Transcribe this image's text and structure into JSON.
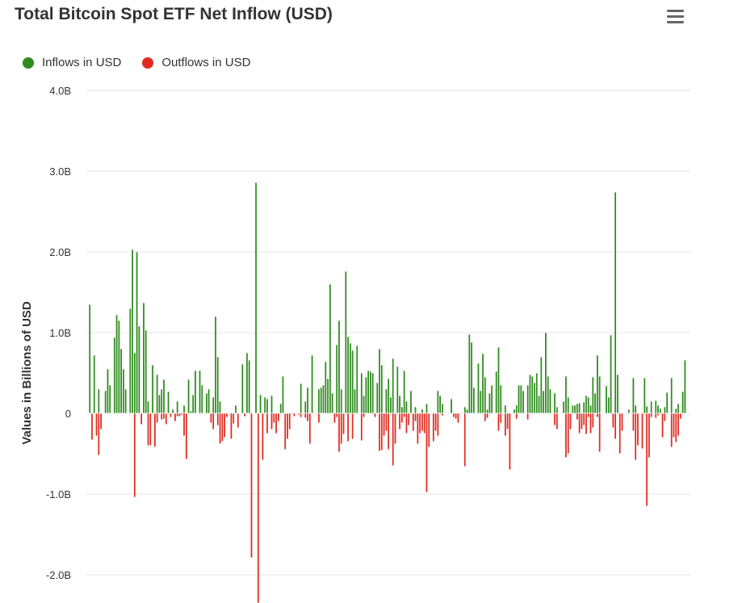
{
  "chart_data": {
    "type": "bar",
    "title": "Total Bitcoin Spot ETF Net Inflow (USD)",
    "ylabel": "Values in Billions of USD",
    "xlabel": "",
    "ylim": [
      -2.35,
      4.0
    ],
    "grid": true,
    "legend_position": "top-left",
    "yticks": [
      {
        "value": 4.0,
        "label": "4.0B"
      },
      {
        "value": 3.0,
        "label": "3.0B"
      },
      {
        "value": 2.0,
        "label": "2.0B"
      },
      {
        "value": 1.0,
        "label": "1.0B"
      },
      {
        "value": 0,
        "label": "0"
      },
      {
        "value": -1.0,
        "label": "-1.0B"
      },
      {
        "value": -2.0,
        "label": "-2.0B"
      }
    ],
    "series": [
      {
        "name": "Inflows in USD",
        "color": "#2e8b1e",
        "values": [
          1.35,
          0,
          0.72,
          0,
          0.3,
          0,
          0,
          0.28,
          0.55,
          0.35,
          0,
          0.94,
          1.22,
          1.15,
          0.8,
          0.55,
          0.3,
          0,
          1.3,
          2.03,
          0.75,
          2.0,
          1.08,
          0,
          1.37,
          1.03,
          0.15,
          0,
          0.6,
          0,
          0.48,
          0.23,
          0.3,
          0.42,
          0,
          0.27,
          0,
          0.05,
          0,
          0.15,
          0,
          0,
          0.1,
          0,
          0.42,
          0.03,
          0.23,
          0.53,
          0,
          0.53,
          0.35,
          0,
          0.25,
          0.3,
          0,
          0.2,
          1.2,
          0.7,
          0.15,
          0,
          0,
          0,
          0,
          0,
          0,
          0.1,
          0,
          0,
          0.61,
          0,
          0.75,
          0.66,
          0,
          0,
          2.86,
          0,
          0.23,
          0,
          0.2,
          0.18,
          0,
          0.22,
          0,
          0,
          0,
          0.12,
          0.46,
          0,
          0,
          0,
          0,
          0,
          0,
          0,
          0.37,
          0,
          0.15,
          0.32,
          0,
          0.72,
          0,
          0,
          0.3,
          0.32,
          0.35,
          0.64,
          0.43,
          1.6,
          0.25,
          0,
          0.85,
          1.15,
          0.3,
          0,
          1.76,
          0.95,
          0.87,
          0.78,
          0.3,
          0.84,
          0,
          0.5,
          0.22,
          0.45,
          0.53,
          0.52,
          0.5,
          0,
          0.38,
          0.8,
          0.6,
          0,
          0.3,
          0.43,
          0.2,
          0.68,
          0,
          0.58,
          0.22,
          0.08,
          0.53,
          0.15,
          0,
          0.28,
          0,
          0.08,
          0,
          0,
          0.05,
          0,
          0.12,
          0,
          0,
          0,
          0,
          0.28,
          0.22,
          0.12,
          0,
          0,
          0,
          0.18,
          0,
          0,
          0,
          0,
          0,
          0.08,
          0.05,
          0.98,
          0.88,
          0.32,
          0,
          0.62,
          0.28,
          0.74,
          0.45,
          0.05,
          0.25,
          0.35,
          0,
          0.52,
          0.82,
          0.35,
          0,
          0.1,
          0,
          0,
          0,
          0.05,
          0.1,
          0.35,
          0.35,
          0.28,
          0,
          0.35,
          0.48,
          0.46,
          0.38,
          0.5,
          0.22,
          0.7,
          0.28,
          1.0,
          0.46,
          0.3,
          0,
          0.25,
          0.08,
          0,
          0,
          0.15,
          0.46,
          0.2,
          0,
          0.1,
          0.1,
          0.12,
          0.13,
          0,
          0.14,
          0.22,
          0.2,
          0.1,
          0.45,
          0.25,
          0.72,
          0.46,
          0,
          0,
          0.34,
          0.2,
          0.97,
          0,
          2.74,
          0.48,
          0,
          0,
          0,
          0,
          0.05,
          0,
          0.44,
          0.1,
          0,
          0,
          0,
          0.44,
          0.09,
          0,
          0.15,
          0,
          0.16,
          0.1,
          0.06,
          0,
          0.08,
          0.26,
          0,
          0.44,
          0,
          0.06,
          0.12,
          0,
          0.27,
          0.66
        ],
        "min_value": 0
      },
      {
        "name": "Outflows in USD",
        "color": "#e02b20",
        "values": [
          0,
          -0.33,
          0,
          -0.28,
          -0.52,
          -0.2,
          0,
          0,
          0,
          0,
          0,
          0,
          0,
          0,
          0,
          0,
          0,
          0,
          0,
          0,
          -1.04,
          0,
          0,
          -0.14,
          0,
          0,
          -0.4,
          -0.4,
          0,
          -0.42,
          -0.12,
          0,
          -0.08,
          -0.07,
          -0.14,
          0,
          -0.05,
          0,
          -0.1,
          -0.04,
          -0.04,
          -0.02,
          -0.28,
          -0.57,
          0,
          0,
          0,
          0,
          0,
          0,
          0,
          0,
          0,
          0,
          -0.12,
          -0.2,
          0,
          -0.15,
          -0.38,
          -0.35,
          -0.3,
          -0.05,
          0,
          -0.32,
          -0.13,
          0,
          -0.18,
          0,
          0,
          -0.04,
          0,
          0,
          -1.79,
          0,
          0,
          -2.35,
          0,
          -0.58,
          0,
          -0.25,
          0,
          -0.2,
          -0.12,
          -0.25,
          -0.1,
          0,
          0,
          -0.45,
          -0.32,
          -0.2,
          0,
          -0.04,
          0,
          -0.02,
          -0.05,
          0,
          -0.06,
          -0.1,
          -0.38,
          0,
          0,
          0,
          -0.12,
          0,
          0,
          0,
          0,
          0,
          0,
          -0.12,
          -0.05,
          -0.48,
          -0.38,
          -0.26,
          0,
          -0.35,
          0,
          -0.32,
          0,
          0,
          0,
          -0.34,
          -0.05,
          0,
          0,
          0,
          0,
          -0.05,
          0,
          -0.47,
          -0.46,
          -0.28,
          -0.22,
          -0.45,
          0,
          -0.65,
          -0.38,
          0,
          -0.2,
          -0.12,
          -0.05,
          -0.25,
          -0.15,
          0,
          -0.22,
          -0.1,
          -0.38,
          -0.25,
          -0.22,
          -0.25,
          -0.98,
          -0.42,
          0,
          -0.35,
          -0.22,
          -0.28,
          0,
          -0.03,
          0,
          0,
          0,
          0,
          -0.05,
          -0.07,
          -0.12,
          0,
          0,
          -0.66,
          0,
          0,
          0,
          0,
          0,
          0,
          0,
          0,
          -0.1,
          -0.06,
          0,
          0,
          0,
          0,
          -0.22,
          -0.12,
          0,
          -0.28,
          -0.2,
          -0.7,
          0,
          0,
          -0.07,
          0,
          0,
          0,
          0,
          -0.08,
          0,
          0,
          0,
          0,
          0,
          0,
          0,
          0,
          0,
          0,
          0,
          -0.15,
          -0.2,
          0,
          0,
          0,
          -0.55,
          -0.5,
          -0.2,
          0,
          0,
          -0.08,
          -0.25,
          -0.2,
          -0.15,
          -0.26,
          -0.05,
          -0.25,
          -0.18,
          0,
          -0.05,
          -0.48,
          0,
          0,
          0,
          0,
          0,
          -0.18,
          -0.32,
          0,
          -0.5,
          -0.22,
          0,
          0,
          0,
          0,
          -0.22,
          -0.58,
          -0.4,
          0,
          -0.44,
          0,
          -1.15,
          -0.55,
          -0.05,
          0,
          -0.06,
          -0.03,
          0,
          -0.3,
          -0.1,
          0,
          0,
          -0.42,
          -0.3,
          -0.36,
          -0.28,
          -0.07,
          0,
          0
        ],
        "min_value": 0
      }
    ]
  },
  "menu_icon": "hamburger-menu-icon"
}
